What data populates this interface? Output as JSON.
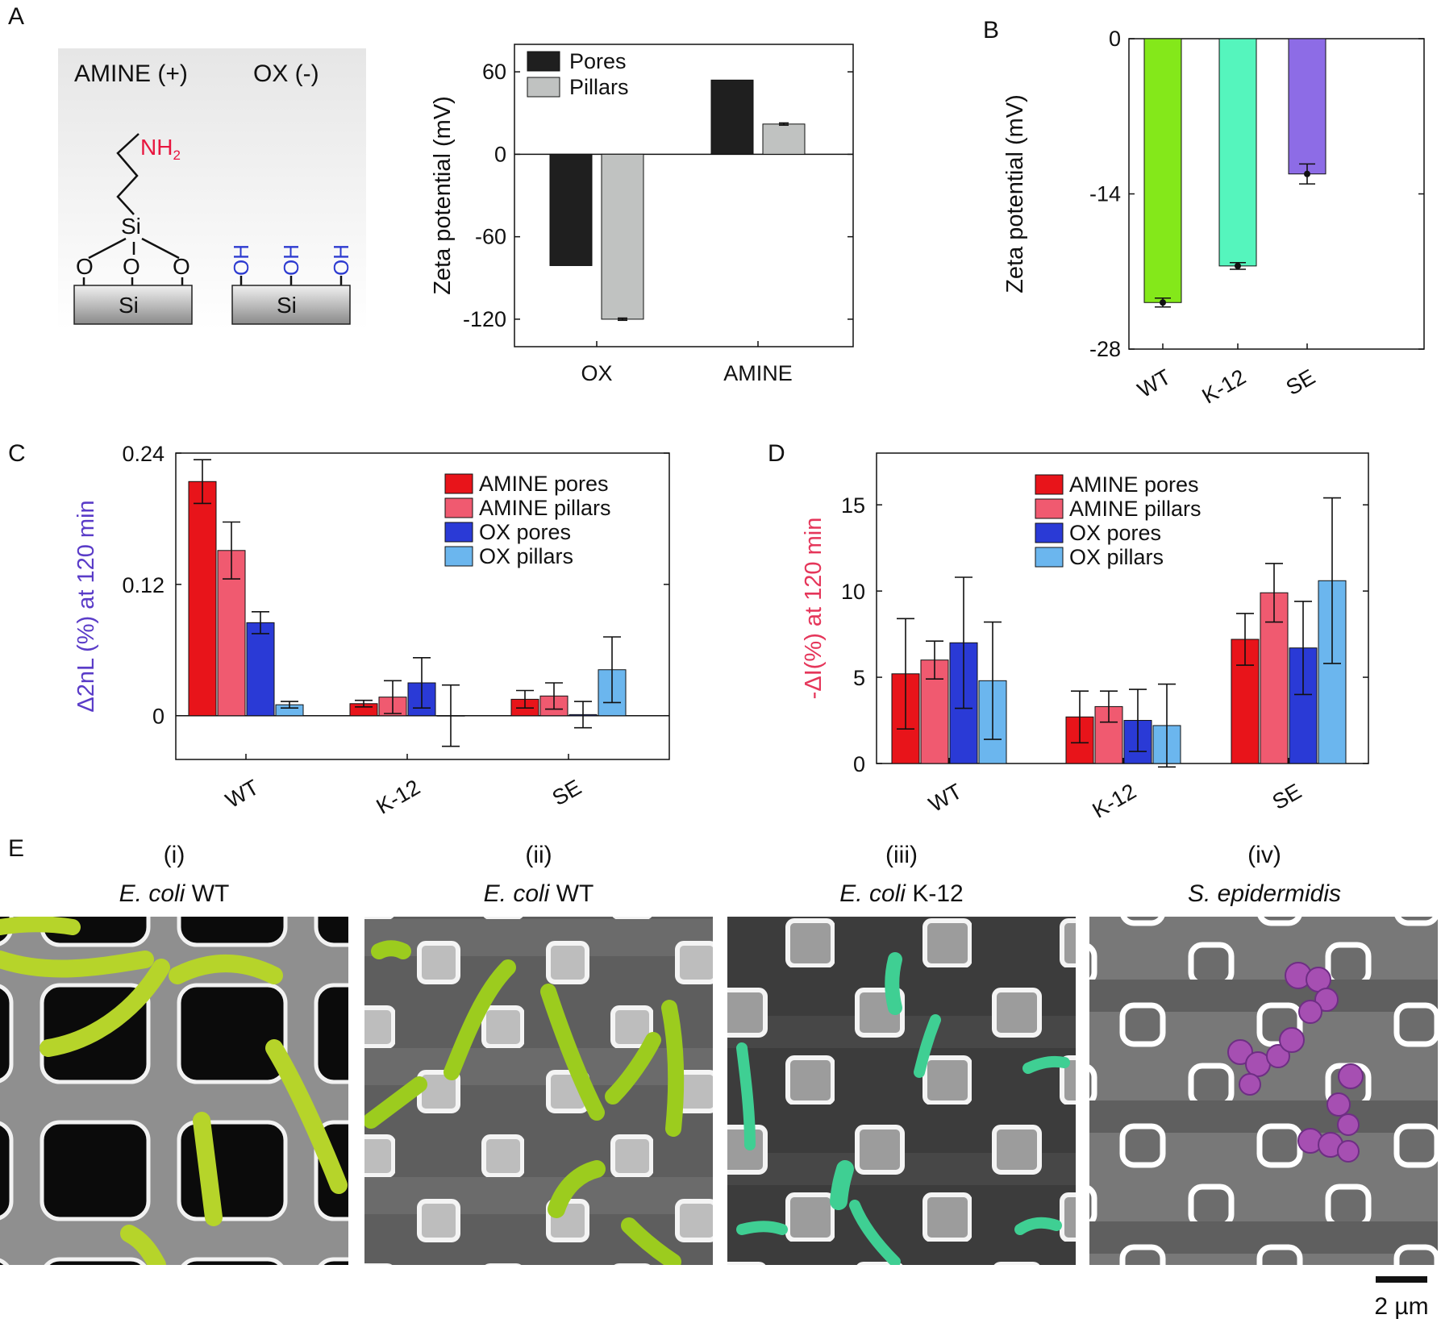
{
  "panels": {
    "a": "A",
    "b": "B",
    "c": "C",
    "d": "D",
    "e": "E"
  },
  "schematic": {
    "amine_label": "AMINE (+)",
    "ox_label": "OX (-)",
    "nh2": "NH",
    "nh2_sub": "2",
    "si": "Si",
    "o": "O",
    "oh": "OH"
  },
  "colors": {
    "pores": "#1f1f1f",
    "pillars": "#c0c2c1",
    "amine_pores": "#e8141a",
    "amine_pillars": "#f05a70",
    "ox_pores": "#2a3ad6",
    "ox_pillars": "#6bb6ee",
    "wt": "#84e81a",
    "k12": "#55f5bd",
    "se": "#8d6ce6",
    "nh2": "#e8163f",
    "oh": "#2c3ad0",
    "ylabel_c": "#5a3cc8",
    "ylabel_d": "#e5365a"
  },
  "chart_data": [
    {
      "id": "A",
      "type": "bar",
      "categories": [
        "OX",
        "AMINE"
      ],
      "series": [
        {
          "name": "Pores",
          "values": [
            -81,
            54
          ],
          "errors": [
            0,
            0
          ]
        },
        {
          "name": "Pillars",
          "values": [
            -120,
            22
          ],
          "errors": [
            0.8,
            0.8
          ]
        }
      ],
      "xlabel": "",
      "ylabel": "Zeta potential (mV)",
      "yticks": [
        60,
        0,
        -60,
        -120
      ],
      "ylim": [
        -140,
        80
      ],
      "legend_position": "top-left"
    },
    {
      "id": "B",
      "type": "bar",
      "categories": [
        "WT",
        "K-12",
        "SE"
      ],
      "series": [
        {
          "values": [
            -23.8,
            -20.5,
            -12.2
          ],
          "errors": [
            0.4,
            0.3,
            0.9
          ]
        }
      ],
      "xlabel": "",
      "ylabel": "Zeta potential (mV)",
      "yticks": [
        0,
        -14,
        -28
      ],
      "ylim": [
        -28,
        0
      ]
    },
    {
      "id": "C",
      "type": "bar",
      "categories": [
        "WT",
        "K-12",
        "SE"
      ],
      "series": [
        {
          "name": "AMINE pores",
          "values": [
            0.214,
            0.011,
            0.015
          ],
          "errors": [
            0.02,
            0.003,
            0.008
          ]
        },
        {
          "name": "AMINE pillars",
          "values": [
            0.151,
            0.017,
            0.018
          ],
          "errors": [
            0.026,
            0.015,
            0.012
          ]
        },
        {
          "name": "OX pores",
          "values": [
            0.085,
            0.03,
            0.001
          ],
          "errors": [
            0.01,
            0.023,
            0.012
          ]
        },
        {
          "name": "OX pillars",
          "values": [
            0.01,
            0.0,
            0.042
          ],
          "errors": [
            0.003,
            0.028,
            0.03
          ]
        }
      ],
      "xlabel": "",
      "ylabel": "Δ2nL (%) at 120 min",
      "yticks": [
        0.24,
        0.12,
        0
      ],
      "ylim": [
        -0.04,
        0.24
      ],
      "legend_position": "top-right"
    },
    {
      "id": "D",
      "type": "bar",
      "categories": [
        "WT",
        "K-12",
        "SE"
      ],
      "series": [
        {
          "name": "AMINE pores",
          "values": [
            5.2,
            2.7,
            7.2
          ],
          "errors": [
            3.2,
            1.5,
            1.5
          ]
        },
        {
          "name": "AMINE pillars",
          "values": [
            6.0,
            3.3,
            9.9
          ],
          "errors": [
            1.1,
            0.9,
            1.7
          ]
        },
        {
          "name": "OX pores",
          "values": [
            7.0,
            2.5,
            6.7
          ],
          "errors": [
            3.8,
            1.8,
            2.7
          ]
        },
        {
          "name": "OX pillars",
          "values": [
            4.8,
            2.2,
            10.6
          ],
          "errors": [
            3.4,
            2.4,
            4.8
          ]
        }
      ],
      "xlabel": "",
      "ylabel": "-ΔI(%) at 120 min",
      "yticks": [
        15,
        10,
        5,
        0
      ],
      "ylim": [
        0,
        18
      ],
      "legend_position": "top-right"
    }
  ],
  "sem": {
    "panels": [
      {
        "roman": "(i)",
        "species": "E. coli",
        "strain": " WT"
      },
      {
        "roman": "(ii)",
        "species": "E. coli",
        "strain": " WT"
      },
      {
        "roman": "(iii)",
        "species": "E. coli",
        "strain": " K-12"
      },
      {
        "roman": "(iv)",
        "species": "S. epidermidis",
        "strain": ""
      }
    ],
    "scale_bar": "2 µm"
  }
}
